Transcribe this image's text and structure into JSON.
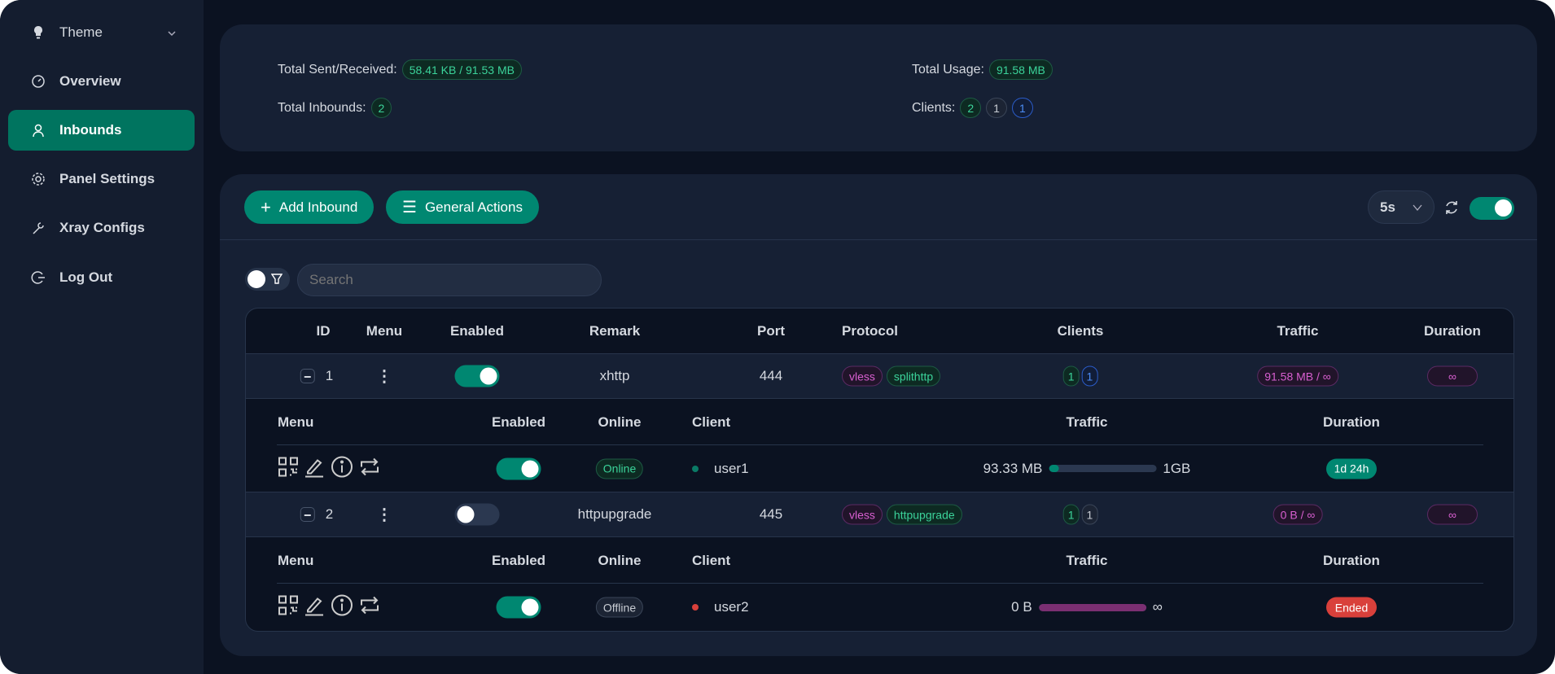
{
  "sidebar": {
    "items": [
      {
        "label": "Theme",
        "icon": "lightbulb-icon"
      },
      {
        "label": "Overview",
        "icon": "dashboard-icon"
      },
      {
        "label": "Inbounds",
        "icon": "user-icon",
        "active": true
      },
      {
        "label": "Panel Settings",
        "icon": "gear-icon"
      },
      {
        "label": "Xray Configs",
        "icon": "wrench-icon"
      },
      {
        "label": "Log Out",
        "icon": "logout-icon"
      }
    ]
  },
  "stats": {
    "sent_received_label": "Total Sent/Received:",
    "sent_received": "58.41 KB / 91.53 MB",
    "usage_label": "Total Usage:",
    "usage": "91.58 MB",
    "inbounds_label": "Total Inbounds:",
    "inbounds": "2",
    "clients_label": "Clients:",
    "clients_active": "2",
    "clients_disabled": "1",
    "clients_online": "1"
  },
  "toolbar": {
    "add_inbound": "Add Inbound",
    "general_actions": "General Actions",
    "refresh_interval": "5s",
    "auto_refresh": true
  },
  "search": {
    "placeholder": "Search",
    "filter_toggle": false
  },
  "table": {
    "headers": [
      "ID",
      "Menu",
      "Enabled",
      "Remark",
      "Port",
      "Protocol",
      "Clients",
      "Traffic",
      "Duration"
    ],
    "client_headers": [
      "Menu",
      "Enabled",
      "Online",
      "Client",
      "Traffic",
      "Duration"
    ],
    "rows": [
      {
        "id": "1",
        "enabled": true,
        "remark": "xhttp",
        "port": "444",
        "protocol": "vless",
        "transport": "splithttp",
        "clients_total": "1",
        "clients_online": "1",
        "traffic": "91.58 MB / ∞",
        "duration": "∞",
        "client": {
          "enabled": true,
          "online": "Online",
          "name": "user1",
          "used": "93.33 MB",
          "limit": "1GB",
          "progress_percent": 9,
          "duration": "1d 24h",
          "status_color": "#008771"
        }
      },
      {
        "id": "2",
        "enabled": false,
        "remark": "httpupgrade",
        "port": "445",
        "protocol": "vless",
        "transport": "httpupgrade",
        "clients_total": "1",
        "clients_disabled": "1",
        "traffic": "0 B / ∞",
        "duration": "∞",
        "client": {
          "enabled": true,
          "online": "Offline",
          "name": "user2",
          "used": "0 B",
          "limit": "∞",
          "progress_percent": 100,
          "duration": "Ended",
          "status_color": "#d9403b"
        }
      }
    ]
  },
  "colors": {
    "accent": "#008771",
    "danger": "#d9403b",
    "purple": "#7b2f72"
  }
}
